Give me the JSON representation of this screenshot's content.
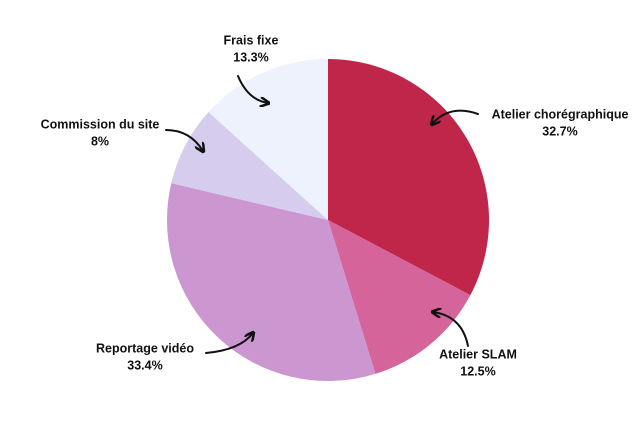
{
  "chart_data": {
    "type": "pie",
    "categories": [
      "Atelier chorégraphique",
      "Atelier SLAM",
      "Reportage vidéo",
      "Commission du site",
      "Frais fixe"
    ],
    "values": [
      32.7,
      12.5,
      33.4,
      8,
      13.3
    ],
    "value_labels": [
      "32.7%",
      "12.5%",
      "33.4%",
      "8%",
      "13.3%"
    ],
    "colors": [
      "#bf2649",
      "#d4649a",
      "#cc97d1",
      "#d6ccee",
      "#eef2fd"
    ]
  }
}
